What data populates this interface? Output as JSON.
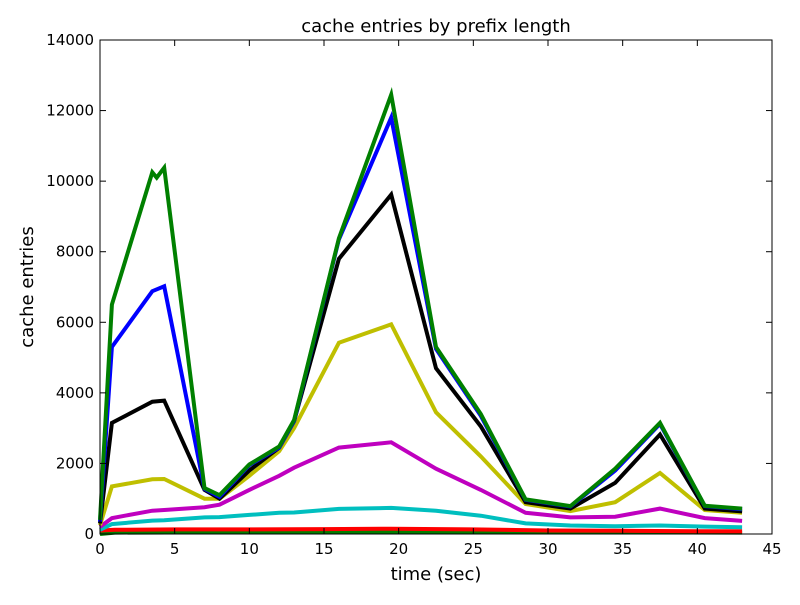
{
  "chart_data": {
    "type": "line",
    "title": "cache entries by prefix length",
    "xlabel": "time (sec)",
    "ylabel": "cache entries",
    "xlim": [
      0,
      45
    ],
    "ylim": [
      0,
      14000
    ],
    "xticks": [
      0,
      5,
      10,
      15,
      20,
      25,
      30,
      35,
      40,
      45
    ],
    "yticks": [
      0,
      2000,
      4000,
      6000,
      8000,
      10000,
      12000,
      14000
    ],
    "grid": false,
    "legend": "none",
    "series": [
      {
        "color": "#008000",
        "points": [
          [
            0,
            0
          ],
          [
            1,
            40
          ],
          [
            10,
            50
          ],
          [
            20,
            60
          ],
          [
            30,
            50
          ],
          [
            43,
            40
          ]
        ]
      },
      {
        "color": "#ff0000",
        "points": [
          [
            0,
            100
          ],
          [
            1,
            120
          ],
          [
            5,
            130
          ],
          [
            10,
            130
          ],
          [
            15,
            140
          ],
          [
            19.5,
            150
          ],
          [
            25,
            130
          ],
          [
            30,
            100
          ],
          [
            35,
            90
          ],
          [
            40,
            80
          ],
          [
            43,
            80
          ]
        ]
      },
      {
        "color": "#00bfbf",
        "points": [
          [
            0,
            120
          ],
          [
            0.8,
            280
          ],
          [
            3.5,
            380
          ],
          [
            4.3,
            390
          ],
          [
            7,
            470
          ],
          [
            8,
            480
          ],
          [
            10,
            540
          ],
          [
            12,
            600
          ],
          [
            13,
            610
          ],
          [
            16,
            710
          ],
          [
            19.5,
            740
          ],
          [
            22.5,
            660
          ],
          [
            25.5,
            520
          ],
          [
            28.5,
            300
          ],
          [
            31.5,
            240
          ],
          [
            34.5,
            220
          ],
          [
            37.5,
            240
          ],
          [
            40.5,
            210
          ],
          [
            43,
            190
          ]
        ]
      },
      {
        "color": "#bf00bf",
        "points": [
          [
            0,
            200
          ],
          [
            0.8,
            450
          ],
          [
            3.5,
            660
          ],
          [
            4.3,
            680
          ],
          [
            7,
            760
          ],
          [
            8,
            830
          ],
          [
            10,
            1250
          ],
          [
            12,
            1650
          ],
          [
            13,
            1880
          ],
          [
            16,
            2450
          ],
          [
            19.5,
            2600
          ],
          [
            22.5,
            1850
          ],
          [
            25.5,
            1250
          ],
          [
            28.5,
            600
          ],
          [
            31.5,
            470
          ],
          [
            34.5,
            490
          ],
          [
            37.5,
            720
          ],
          [
            40.5,
            450
          ],
          [
            43,
            370
          ]
        ]
      },
      {
        "color": "#bfbf00",
        "points": [
          [
            0,
            250
          ],
          [
            0.8,
            1350
          ],
          [
            3.5,
            1550
          ],
          [
            4.3,
            1560
          ],
          [
            7,
            1000
          ],
          [
            8,
            1000
          ],
          [
            10,
            1650
          ],
          [
            12,
            2350
          ],
          [
            13,
            3000
          ],
          [
            16,
            5420
          ],
          [
            19.5,
            5940
          ],
          [
            22.5,
            3450
          ],
          [
            25.5,
            2200
          ],
          [
            28.5,
            850
          ],
          [
            31.5,
            650
          ],
          [
            34.5,
            900
          ],
          [
            37.5,
            1730
          ],
          [
            40.5,
            680
          ],
          [
            43,
            600
          ]
        ]
      },
      {
        "color": "#000000",
        "points": [
          [
            0,
            300
          ],
          [
            0.8,
            3150
          ],
          [
            3.5,
            3750
          ],
          [
            4.3,
            3780
          ],
          [
            7,
            1250
          ],
          [
            8,
            1000
          ],
          [
            10,
            1800
          ],
          [
            12,
            2450
          ],
          [
            13,
            3200
          ],
          [
            16,
            7800
          ],
          [
            19.5,
            9620
          ],
          [
            22.5,
            4700
          ],
          [
            25.5,
            3050
          ],
          [
            28.5,
            900
          ],
          [
            31.5,
            720
          ],
          [
            34.5,
            1450
          ],
          [
            37.5,
            2820
          ],
          [
            40.5,
            720
          ],
          [
            43,
            640
          ]
        ]
      },
      {
        "color": "#0000ff",
        "points": [
          [
            0,
            350
          ],
          [
            0.8,
            5300
          ],
          [
            3.5,
            6880
          ],
          [
            4.3,
            7020
          ],
          [
            7,
            1280
          ],
          [
            8,
            1050
          ],
          [
            10,
            1950
          ],
          [
            12,
            2450
          ],
          [
            13,
            3200
          ],
          [
            16,
            8350
          ],
          [
            19.5,
            11800
          ],
          [
            22.5,
            5250
          ],
          [
            25.5,
            3350
          ],
          [
            28.5,
            970
          ],
          [
            31.5,
            780
          ],
          [
            34.5,
            1800
          ],
          [
            37.5,
            3120
          ],
          [
            40.5,
            790
          ],
          [
            43,
            700
          ]
        ]
      },
      {
        "color": "#008000",
        "points": [
          [
            0,
            400
          ],
          [
            0.8,
            6500
          ],
          [
            3.5,
            10250
          ],
          [
            3.8,
            10100
          ],
          [
            4.3,
            10380
          ],
          [
            7,
            1300
          ],
          [
            8,
            1100
          ],
          [
            10,
            1970
          ],
          [
            12,
            2480
          ],
          [
            13,
            3230
          ],
          [
            16,
            8380
          ],
          [
            19.5,
            12450
          ],
          [
            22.5,
            5300
          ],
          [
            25.5,
            3400
          ],
          [
            28.5,
            980
          ],
          [
            31.5,
            790
          ],
          [
            34.5,
            1850
          ],
          [
            37.5,
            3150
          ],
          [
            40.5,
            800
          ],
          [
            43,
            720
          ]
        ]
      }
    ]
  }
}
